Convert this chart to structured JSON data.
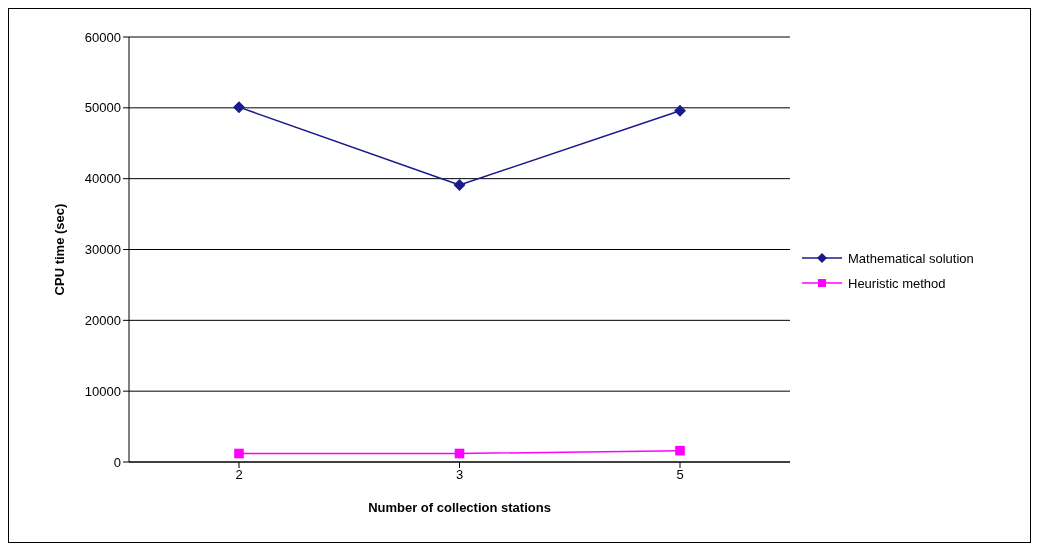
{
  "chart_data": {
    "type": "line",
    "xlabel": "Number of collection stations",
    "ylabel": "CPU time (sec)",
    "categories": [
      "2",
      "3",
      "5"
    ],
    "series": [
      {
        "name": "Mathematical solution",
        "color": "#1a1a8c",
        "marker": "diamond",
        "values": [
          50100,
          39100,
          49600
        ]
      },
      {
        "name": "Heuristic method",
        "color": "#ff00ff",
        "marker": "square",
        "values": [
          1200,
          1200,
          1600
        ]
      }
    ],
    "ylim": [
      0,
      60000
    ],
    "yticks": [
      0,
      10000,
      20000,
      30000,
      40000,
      50000,
      60000
    ],
    "grid": "y",
    "legend": "right",
    "line_style": "solid"
  }
}
